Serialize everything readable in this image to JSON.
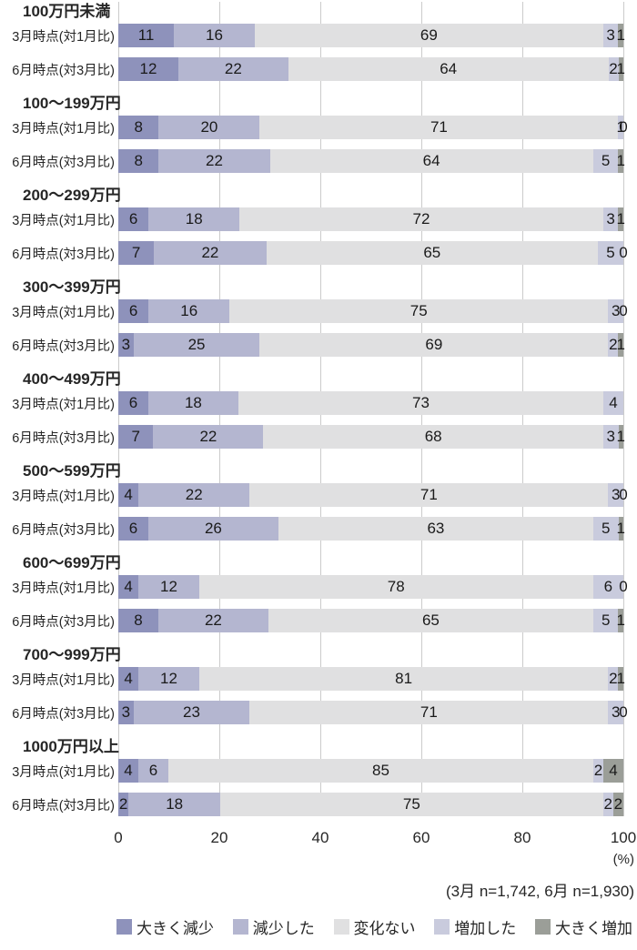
{
  "colors": {
    "big_decrease": "#8e92bb",
    "decrease": "#b4b6d0",
    "no_change": "#e0e0e1",
    "increase": "#c9cbdd",
    "big_increase": "#9b9e98",
    "grid": "#cbcbcb",
    "text": "#262626"
  },
  "chart_data": {
    "type": "bar",
    "orientation": "horizontal",
    "stacked": true,
    "unit": "(%)",
    "note": "(3月 n=1,742, 6月 n=1,930)",
    "x_ticks": [
      "0",
      "20",
      "40",
      "60",
      "80",
      "100"
    ],
    "xlim": [
      0,
      100
    ],
    "grid": true,
    "legend_position": "bottom",
    "series_names": [
      "大きく減少",
      "減少した",
      "変化ない",
      "増加した",
      "大きく増加"
    ],
    "row_labels": [
      "3月時点(対1月比)",
      "6月時点(対3月比)"
    ],
    "groups": [
      {
        "label": "100万円未満",
        "rows": [
          [
            11,
            16,
            69,
            3,
            1
          ],
          [
            12,
            22,
            64,
            2,
            1
          ]
        ]
      },
      {
        "label": "100〜199万円",
        "rows": [
          [
            8,
            20,
            71,
            1,
            0
          ],
          [
            8,
            22,
            64,
            5,
            1
          ]
        ]
      },
      {
        "label": "200〜299万円",
        "rows": [
          [
            6,
            18,
            72,
            3,
            1
          ],
          [
            7,
            22,
            65,
            5,
            0
          ]
        ]
      },
      {
        "label": "300〜399万円",
        "rows": [
          [
            6,
            16,
            75,
            3,
            0
          ],
          [
            3,
            25,
            69,
            2,
            1
          ]
        ]
      },
      {
        "label": "400〜499万円",
        "rows": [
          [
            6,
            18,
            73,
            4,
            null
          ],
          [
            7,
            22,
            68,
            3,
            1
          ]
        ]
      },
      {
        "label": "500〜599万円",
        "rows": [
          [
            4,
            22,
            71,
            3,
            0
          ],
          [
            6,
            26,
            63,
            5,
            1
          ]
        ]
      },
      {
        "label": "600〜699万円",
        "rows": [
          [
            4,
            12,
            78,
            6,
            0
          ],
          [
            8,
            22,
            65,
            5,
            1
          ]
        ]
      },
      {
        "label": "700〜999万円",
        "rows": [
          [
            4,
            12,
            81,
            2,
            1
          ],
          [
            3,
            23,
            71,
            3,
            0
          ]
        ]
      },
      {
        "label": "1000万円以上",
        "rows": [
          [
            4,
            6,
            85,
            2,
            4
          ],
          [
            2,
            18,
            75,
            2,
            2
          ]
        ]
      }
    ]
  },
  "legend": {
    "items": [
      {
        "label": "大きく減少"
      },
      {
        "label": "減少した"
      },
      {
        "label": "変化ない"
      },
      {
        "label": "増加した"
      },
      {
        "label": "大きく増加"
      }
    ]
  }
}
